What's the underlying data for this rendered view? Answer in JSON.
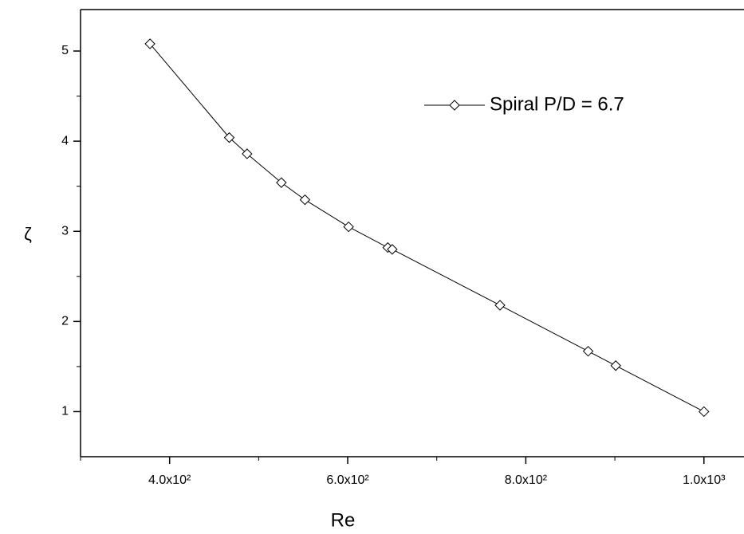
{
  "chart_data": {
    "type": "line",
    "x_label": "Re",
    "y_label": "ζ",
    "series": [
      {
        "name": "Spiral P/D = 6.7",
        "color": "#000000",
        "x": [
          378,
          467,
          487,
          525.5,
          552,
          601,
          645,
          650,
          771,
          870,
          901,
          1000
        ],
        "values": [
          5.08,
          4.04,
          3.86,
          3.54,
          3.35,
          3.05,
          2.82,
          2.8,
          2.18,
          1.67,
          1.51,
          1.0
        ]
      }
    ],
    "xlim": [
      300,
      1045
    ],
    "ylim": [
      0.5,
      5.46
    ],
    "xticks": [
      {
        "value": 400,
        "label": "4.0x10²"
      },
      {
        "value": 600,
        "label": "6.0x10²"
      },
      {
        "value": 800,
        "label": "8.0x10²"
      },
      {
        "value": 1000,
        "label": "1.0x10³"
      }
    ],
    "xminorticks": [
      300,
      500,
      700,
      900
    ],
    "yticks": [
      1,
      2,
      3,
      4,
      5
    ],
    "yminorticks": [
      1.5,
      2.5,
      3.5,
      4.5
    ],
    "legend": "upper-right"
  }
}
